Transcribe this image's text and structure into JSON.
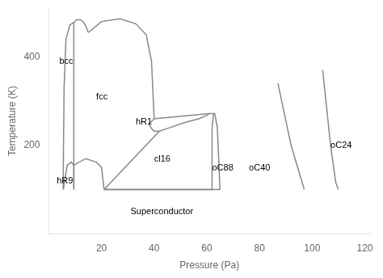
{
  "chart_data": {
    "type": "line",
    "xlabel": "Pressure (Pa)",
    "ylabel": "Temperature (K)",
    "xlim": [
      0,
      122
    ],
    "ylim": [
      0,
      510
    ],
    "xticks": [
      20,
      40,
      60,
      80,
      100,
      120
    ],
    "yticks": [
      200,
      400
    ],
    "grid": false,
    "color": "#888888",
    "series": [
      {
        "x": [
          5.5,
          5.5,
          5.8,
          6.5,
          8.0,
          9.5
        ],
        "values": [
          100,
          150,
          330,
          440,
          472,
          478
        ]
      },
      {
        "x": [
          9.5,
          10.5,
          12,
          13,
          14,
          15
        ],
        "values": [
          478,
          484,
          484,
          480,
          470,
          455
        ]
      },
      {
        "x": [
          9.5,
          9.5,
          9.5
        ],
        "values": [
          100,
          300,
          478
        ]
      },
      {
        "x": [
          15,
          20,
          27,
          33,
          37,
          39,
          40
        ],
        "values": [
          455,
          480,
          486,
          475,
          450,
          390,
          260
        ]
      },
      {
        "x": [
          9.5,
          9.5
        ],
        "values": [
          100,
          155
        ]
      },
      {
        "x": [
          9.5,
          8.5,
          7,
          5.5
        ],
        "values": [
          155,
          162,
          155,
          100
        ]
      },
      {
        "x": [
          9.5,
          14,
          18,
          20
        ],
        "values": [
          155,
          170,
          162,
          150
        ]
      },
      {
        "x": [
          20,
          21
        ],
        "values": [
          150,
          100
        ]
      },
      {
        "x": [
          40,
          38,
          39,
          40,
          42
        ],
        "values": [
          260,
          248,
          238,
          232,
          232
        ]
      },
      {
        "x": [
          42,
          46,
          52,
          57,
          60,
          61
        ],
        "values": [
          232,
          240,
          252,
          260,
          268,
          272
        ]
      },
      {
        "x": [
          40,
          61
        ],
        "values": [
          260,
          272
        ]
      },
      {
        "x": [
          21,
          42
        ],
        "values": [
          100,
          232
        ]
      },
      {
        "x": [
          21,
          62
        ],
        "values": [
          100,
          100
        ]
      },
      {
        "x": [
          62,
          62,
          62.5,
          63
        ],
        "values": [
          100,
          240,
          268,
          272
        ]
      },
      {
        "x": [
          61,
          63
        ],
        "values": [
          272,
          272
        ]
      },
      {
        "x": [
          63,
          64,
          65
        ],
        "values": [
          272,
          240,
          100
        ]
      },
      {
        "x": [
          21,
          65
        ],
        "values": [
          100,
          100
        ]
      },
      {
        "x": [
          87,
          92,
          96,
          97
        ],
        "values": [
          340,
          200,
          120,
          100
        ]
      },
      {
        "x": [
          104,
          107,
          109,
          110
        ],
        "values": [
          370,
          200,
          115,
          100
        ]
      }
    ],
    "annotations": [
      {
        "text": "bcc",
        "x": 4.0,
        "y": 390
      },
      {
        "text": "fcc",
        "x": 18,
        "y": 310
      },
      {
        "text": "hR1",
        "x": 33,
        "y": 252
      },
      {
        "text": "hR9",
        "x": 3.0,
        "y": 120
      },
      {
        "text": "cl16",
        "x": 40,
        "y": 168
      },
      {
        "text": "oC88",
        "x": 62,
        "y": 148
      },
      {
        "text": "oC40",
        "x": 76,
        "y": 148
      },
      {
        "text": "oC24",
        "x": 107,
        "y": 200
      },
      {
        "text": "Superconductor",
        "x": 31,
        "y": 50
      }
    ]
  }
}
